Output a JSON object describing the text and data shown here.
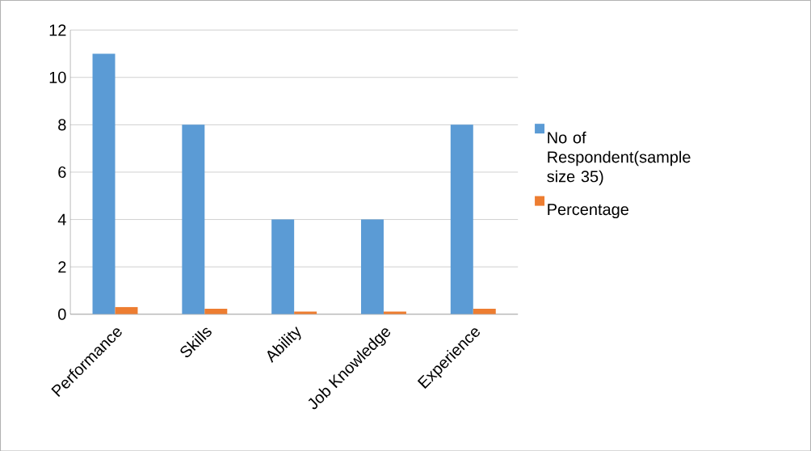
{
  "chart_data": {
    "type": "bar",
    "categories": [
      "Performance",
      "Skills",
      "Ability",
      "Job Knowledge",
      "Experience"
    ],
    "series": [
      {
        "name": "No of Respondent(sample size 35)",
        "color": "#5b9bd5",
        "values": [
          11,
          8,
          4,
          4,
          8
        ]
      },
      {
        "name": "Percentage",
        "color": "#ed7d31",
        "values": [
          0.31,
          0.23,
          0.11,
          0.11,
          0.23
        ]
      }
    ],
    "ylim": [
      0,
      12
    ],
    "yticks": [
      0,
      2,
      4,
      6,
      8,
      10,
      12
    ],
    "grid": "y",
    "legend": "right"
  }
}
